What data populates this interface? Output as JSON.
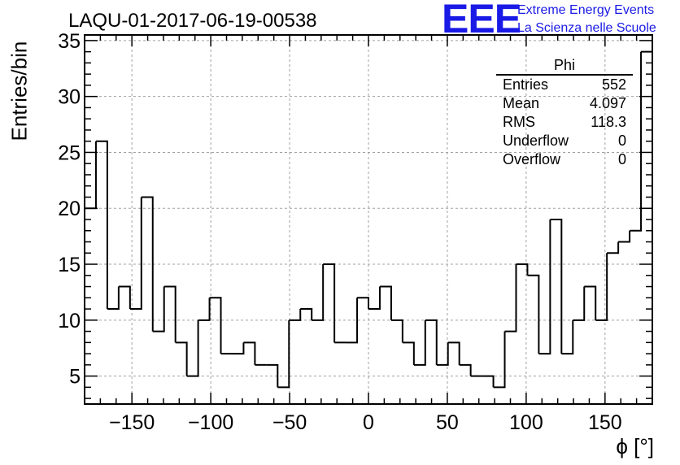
{
  "header": {
    "title": "LAQU-01-2017-06-19-00538",
    "logo_text": "EEE",
    "logo_line1": "Extreme Energy Events",
    "logo_line2": "La Scienza nelle Scuole"
  },
  "stats_box": {
    "title": "Phi",
    "rows": [
      {
        "label": "Entries",
        "value": "552"
      },
      {
        "label": "Mean",
        "value": "4.097"
      },
      {
        "label": "RMS",
        "value": "118.3"
      },
      {
        "label": "Underflow",
        "value": "0"
      },
      {
        "label": "Overflow",
        "value": "0"
      }
    ]
  },
  "colors": {
    "line": "#000000",
    "grid": "#a0a0a0",
    "logo": "#1a1ae6"
  },
  "chart_data": {
    "type": "histogram",
    "xlabel": "ϕ [°]",
    "ylabel": "Entries/bin",
    "xlim": [
      -180,
      180
    ],
    "ylim": [
      2.5,
      35.5
    ],
    "bin_width": 7.2,
    "bin_start": -180,
    "values": [
      20,
      26,
      11,
      13,
      11,
      21,
      9,
      13,
      8,
      5,
      10,
      12,
      7,
      7,
      8,
      6,
      6,
      4,
      10,
      11,
      10,
      15,
      8,
      8,
      12,
      11,
      13,
      10,
      8,
      6,
      10,
      6,
      8,
      6,
      5,
      5,
      4,
      9,
      15,
      14,
      7,
      19,
      7,
      10,
      13,
      10,
      16,
      17,
      18,
      34
    ],
    "x_ticks": [
      -150,
      -100,
      -50,
      0,
      50,
      100,
      150
    ],
    "x_tick_labels": [
      "−150",
      "−100",
      "−50",
      "0",
      "50",
      "100",
      "150"
    ],
    "y_ticks": [
      5,
      10,
      15,
      20,
      25,
      30,
      35
    ],
    "y_tick_labels": [
      "5",
      "10",
      "15",
      "20",
      "25",
      "30",
      "35"
    ],
    "grid": true
  }
}
